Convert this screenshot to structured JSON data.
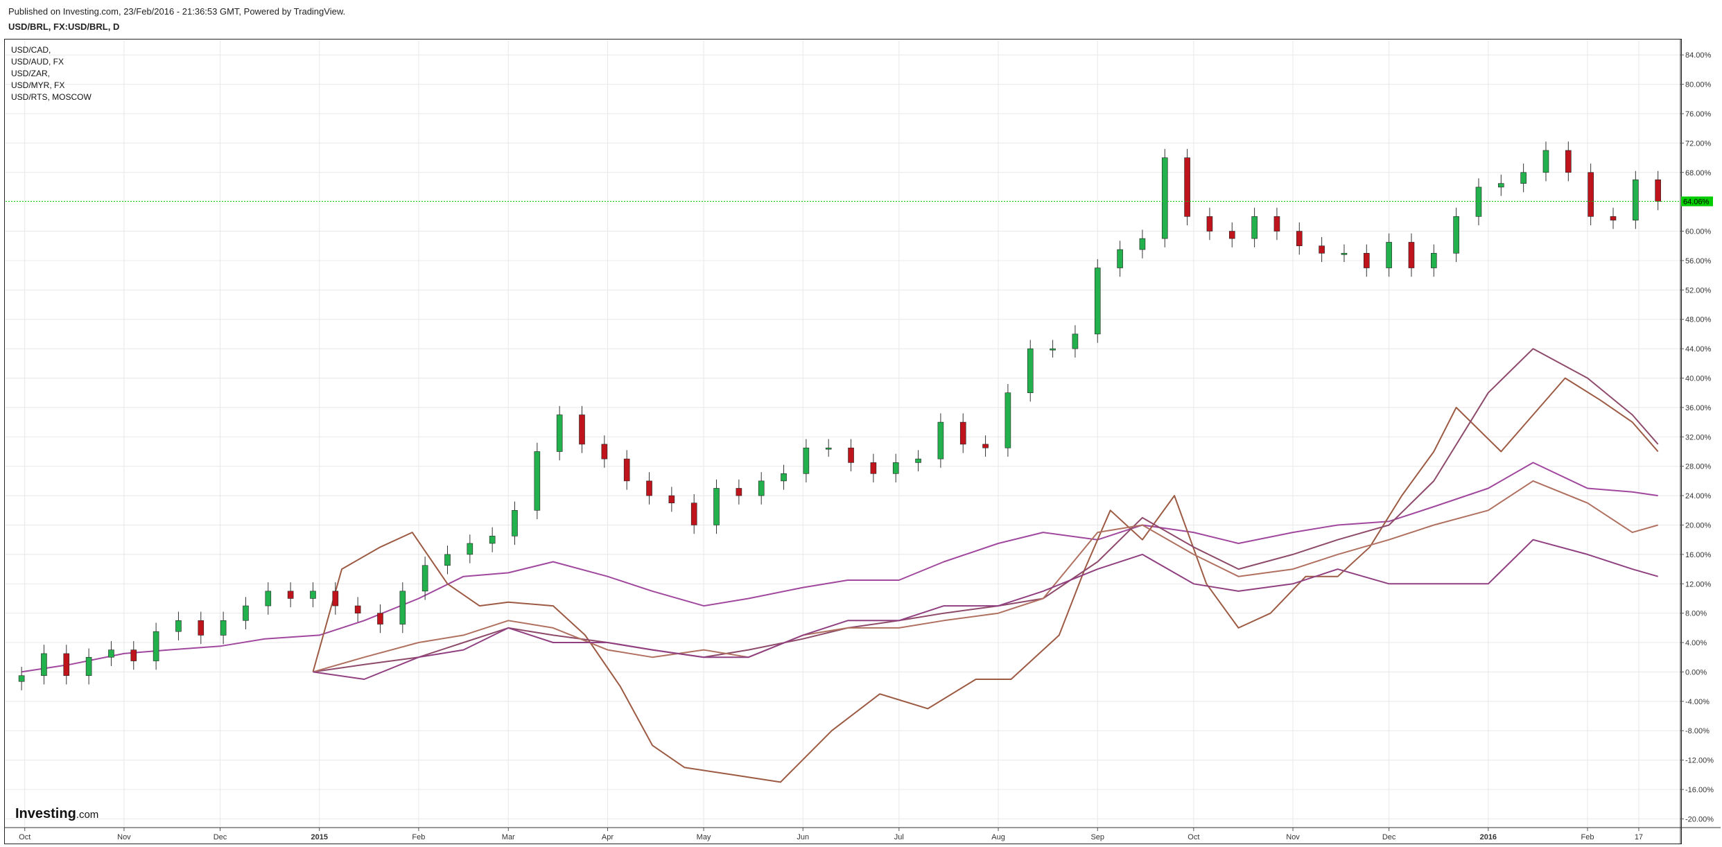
{
  "header": {
    "published": "Published on Investing.com, 23/Feb/2016 - 21:36:53 GMT, Powered by TradingView.",
    "symbol": "USD/BRL, FX:USD/BRL, D"
  },
  "legend": [
    "USD/CAD,",
    "USD/AUD, FX",
    "USD/ZAR,",
    "USD/MYR, FX",
    "USD/RTS, MOSCOW"
  ],
  "logo": {
    "brand": "Investing",
    "suffix": ".com"
  },
  "price_tag": "64.06%",
  "colors": {
    "up": "#22b14c",
    "down": "#c0141c",
    "grid": "#e8e8e8",
    "price_line": "#00cc00"
  },
  "chart_data": {
    "type": "line",
    "main_series": {
      "name": "USD/BRL",
      "style": "candlestick",
      "x": [
        "2014-09-30",
        "2014-10-07",
        "2014-10-14",
        "2014-10-21",
        "2014-10-28",
        "2014-11-04",
        "2014-11-11",
        "2014-11-18",
        "2014-11-25",
        "2014-12-02",
        "2014-12-09",
        "2014-12-16",
        "2014-12-23",
        "2014-12-30",
        "2015-01-06",
        "2015-01-13",
        "2015-01-20",
        "2015-01-27",
        "2015-02-03",
        "2015-02-10",
        "2015-02-17",
        "2015-02-24",
        "2015-03-03",
        "2015-03-10",
        "2015-03-17",
        "2015-03-24",
        "2015-03-31",
        "2015-04-07",
        "2015-04-14",
        "2015-04-21",
        "2015-04-28",
        "2015-05-05",
        "2015-05-12",
        "2015-05-19",
        "2015-05-26",
        "2015-06-02",
        "2015-06-09",
        "2015-06-16",
        "2015-06-23",
        "2015-06-30",
        "2015-07-07",
        "2015-07-14",
        "2015-07-21",
        "2015-07-28",
        "2015-08-04",
        "2015-08-11",
        "2015-08-18",
        "2015-08-25",
        "2015-09-01",
        "2015-09-08",
        "2015-09-15",
        "2015-09-22",
        "2015-09-29",
        "2015-10-06",
        "2015-10-13",
        "2015-10-20",
        "2015-10-27",
        "2015-11-03",
        "2015-11-10",
        "2015-11-17",
        "2015-11-24",
        "2015-12-01",
        "2015-12-08",
        "2015-12-15",
        "2015-12-22",
        "2015-12-29",
        "2016-01-05",
        "2016-01-12",
        "2016-01-19",
        "2016-01-26",
        "2016-02-02",
        "2016-02-09",
        "2016-02-16",
        "2016-02-23"
      ],
      "values": [
        -0.5,
        2.5,
        -0.5,
        2.0,
        3.0,
        1.5,
        5.5,
        7.0,
        5.0,
        7.0,
        9.0,
        11.0,
        10.0,
        11.0,
        9.0,
        8.0,
        6.5,
        11.0,
        14.5,
        16.0,
        17.5,
        18.5,
        22.0,
        30.0,
        35.0,
        31.0,
        29.0,
        26.0,
        24.0,
        23.0,
        20.0,
        25.0,
        24.0,
        26.0,
        27.0,
        30.5,
        30.5,
        28.5,
        27.0,
        28.5,
        29.0,
        34.0,
        31.0,
        30.5,
        38.0,
        44.0,
        44.0,
        46.0,
        55.0,
        57.5,
        59.0,
        70.0,
        62.0,
        60.0,
        59.0,
        62.0,
        60.0,
        58.0,
        57.0,
        57.0,
        55.0,
        58.5,
        55.0,
        57.0,
        62.0,
        66.0,
        66.5,
        68.0,
        71.0,
        68.0,
        62.0,
        61.5,
        67.0,
        64.06
      ]
    },
    "series": [
      {
        "color": "#a0479e",
        "x": [
          "2014-09-30",
          "2014-10-15",
          "2014-11-01",
          "2014-11-15",
          "2014-12-01",
          "2014-12-15",
          "2015-01-01",
          "2015-01-15",
          "2015-02-01",
          "2015-02-15",
          "2015-03-01",
          "2015-03-15",
          "2015-04-01",
          "2015-04-15",
          "2015-05-01",
          "2015-05-15",
          "2015-06-01",
          "2015-06-15",
          "2015-07-01",
          "2015-07-15",
          "2015-08-01",
          "2015-08-15",
          "2015-09-01",
          "2015-09-15",
          "2015-10-01",
          "2015-10-15",
          "2015-11-01",
          "2015-11-15",
          "2015-12-01",
          "2015-12-15",
          "2016-01-01",
          "2016-01-15",
          "2016-02-01",
          "2016-02-15",
          "2016-02-23"
        ],
        "values": [
          0,
          1,
          2.5,
          3,
          3.5,
          4.5,
          5,
          7,
          10,
          13,
          13.5,
          15,
          13,
          11,
          9,
          10,
          11.5,
          12.5,
          12.5,
          15,
          17.5,
          19,
          18,
          20,
          19,
          17.5,
          19,
          20,
          20.5,
          22.5,
          25,
          28.5,
          25,
          24.5,
          24
        ]
      },
      {
        "color": "#9c5a43",
        "x": [
          "2014-12-30",
          "2015-01-08",
          "2015-01-20",
          "2015-01-30",
          "2015-02-10",
          "2015-02-20",
          "2015-03-01",
          "2015-03-15",
          "2015-03-25",
          "2015-04-05",
          "2015-04-15",
          "2015-04-25",
          "2015-05-10",
          "2015-05-25",
          "2015-06-10",
          "2015-06-25",
          "2015-07-10",
          "2015-07-25",
          "2015-08-05",
          "2015-08-20",
          "2015-08-28",
          "2015-09-05",
          "2015-09-15",
          "2015-09-25",
          "2015-10-05",
          "2015-10-15",
          "2015-10-25",
          "2015-11-05",
          "2015-11-15",
          "2015-11-25",
          "2015-12-05",
          "2015-12-15",
          "2015-12-22",
          "2016-01-05",
          "2016-01-15",
          "2016-01-25",
          "2016-02-05",
          "2016-02-15",
          "2016-02-23"
        ],
        "values": [
          0,
          14,
          17,
          19,
          12,
          9,
          9.5,
          9,
          5,
          -2,
          -10,
          -13,
          -14,
          -15,
          -8,
          -3,
          -5,
          -1,
          -1,
          5,
          14,
          22,
          18,
          24,
          12,
          6,
          8,
          13,
          13,
          17,
          24,
          30,
          36,
          30,
          35,
          40,
          37,
          34,
          30
        ]
      },
      {
        "color": "#8e4a6a",
        "x": [
          "2014-12-30",
          "2015-01-15",
          "2015-02-01",
          "2015-02-15",
          "2015-03-01",
          "2015-03-15",
          "2015-04-01",
          "2015-04-15",
          "2015-05-01",
          "2015-05-15",
          "2015-06-01",
          "2015-06-15",
          "2015-07-01",
          "2015-07-15",
          "2015-08-01",
          "2015-08-15",
          "2015-09-01",
          "2015-09-15",
          "2015-10-01",
          "2015-10-15",
          "2015-11-01",
          "2015-11-15",
          "2015-12-01",
          "2015-12-15",
          "2016-01-01",
          "2016-01-15",
          "2016-02-01",
          "2016-02-15",
          "2016-02-23"
        ],
        "values": [
          0,
          1,
          2,
          4,
          6,
          5,
          4,
          3,
          2,
          3,
          4.5,
          6,
          7,
          8,
          9,
          10,
          15,
          21,
          17,
          14,
          16,
          18,
          20,
          26,
          38,
          44,
          40,
          35,
          31
        ]
      },
      {
        "color": "#b07060",
        "x": [
          "2014-12-30",
          "2015-01-15",
          "2015-02-01",
          "2015-02-15",
          "2015-03-01",
          "2015-03-15",
          "2015-04-01",
          "2015-04-15",
          "2015-05-01",
          "2015-05-15",
          "2015-06-01",
          "2015-06-15",
          "2015-07-01",
          "2015-07-15",
          "2015-08-01",
          "2015-08-15",
          "2015-09-01",
          "2015-09-15",
          "2015-10-01",
          "2015-10-15",
          "2015-11-01",
          "2015-11-15",
          "2015-12-01",
          "2015-12-15",
          "2016-01-01",
          "2016-01-15",
          "2016-02-01",
          "2016-02-15",
          "2016-02-23"
        ],
        "values": [
          0,
          2,
          4,
          5,
          7,
          6,
          3,
          2,
          3,
          2,
          5,
          6,
          6,
          7,
          8,
          10,
          19,
          20,
          16,
          13,
          14,
          16,
          18,
          20,
          22,
          26,
          23,
          19,
          20
        ]
      },
      {
        "color": "#904080",
        "x": [
          "2014-12-30",
          "2015-01-15",
          "2015-02-01",
          "2015-02-15",
          "2015-03-01",
          "2015-03-15",
          "2015-04-01",
          "2015-04-15",
          "2015-05-01",
          "2015-05-15",
          "2015-06-01",
          "2015-06-15",
          "2015-07-01",
          "2015-07-15",
          "2015-08-01",
          "2015-08-15",
          "2015-09-01",
          "2015-09-15",
          "2015-10-01",
          "2015-10-15",
          "2015-11-01",
          "2015-11-15",
          "2015-12-01",
          "2015-12-15",
          "2016-01-01",
          "2016-01-15",
          "2016-02-01",
          "2016-02-15",
          "2016-02-23"
        ],
        "values": [
          0,
          -1,
          2,
          3,
          6,
          4,
          4,
          3,
          2,
          2,
          5,
          7,
          7,
          9,
          9,
          11,
          14,
          16,
          12,
          11,
          12,
          14,
          12,
          12,
          12,
          18,
          16,
          14,
          13
        ]
      }
    ],
    "x_tick_labels": [
      "Oct",
      "Nov",
      "Dec",
      "2015",
      "Feb",
      "Mar",
      "Apr",
      "May",
      "Jun",
      "Jul",
      "Aug",
      "Sep",
      "Oct",
      "Nov",
      "Dec",
      "2016",
      "Feb",
      "17"
    ],
    "x_tick_dates": [
      "2014-10-01",
      "2014-11-01",
      "2014-12-01",
      "2015-01-01",
      "2015-02-01",
      "2015-03-01",
      "2015-04-01",
      "2015-05-01",
      "2015-06-01",
      "2015-07-01",
      "2015-08-01",
      "2015-09-01",
      "2015-10-01",
      "2015-11-01",
      "2015-12-01",
      "2016-01-01",
      "2016-02-01",
      "2016-02-17"
    ],
    "bold_x_ticks": [
      "2015",
      "2016"
    ],
    "y_tick_labels": [
      "84.00%",
      "80.00%",
      "76.00%",
      "72.00%",
      "68.00%",
      "60.00%",
      "56.00%",
      "52.00%",
      "48.00%",
      "44.00%",
      "40.00%",
      "36.00%",
      "32.00%",
      "28.00%",
      "24.00%",
      "20.00%",
      "16.00%",
      "12.00%",
      "8.00%",
      "4.00%",
      "0.00%",
      "-4.00%",
      "-8.00%",
      "-12.00%",
      "-16.00%",
      "-20.00%"
    ],
    "y_tick_values": [
      84,
      80,
      76,
      72,
      68,
      60,
      56,
      52,
      48,
      44,
      40,
      36,
      32,
      28,
      24,
      20,
      16,
      12,
      8,
      4,
      0,
      -4,
      -8,
      -12,
      -16,
      -20
    ],
    "xlim": [
      "2014-09-25",
      "2016-03-01"
    ],
    "ylim": [
      -21,
      86
    ],
    "y_axis_position": "right",
    "grid": true,
    "last_value": 64.06
  }
}
